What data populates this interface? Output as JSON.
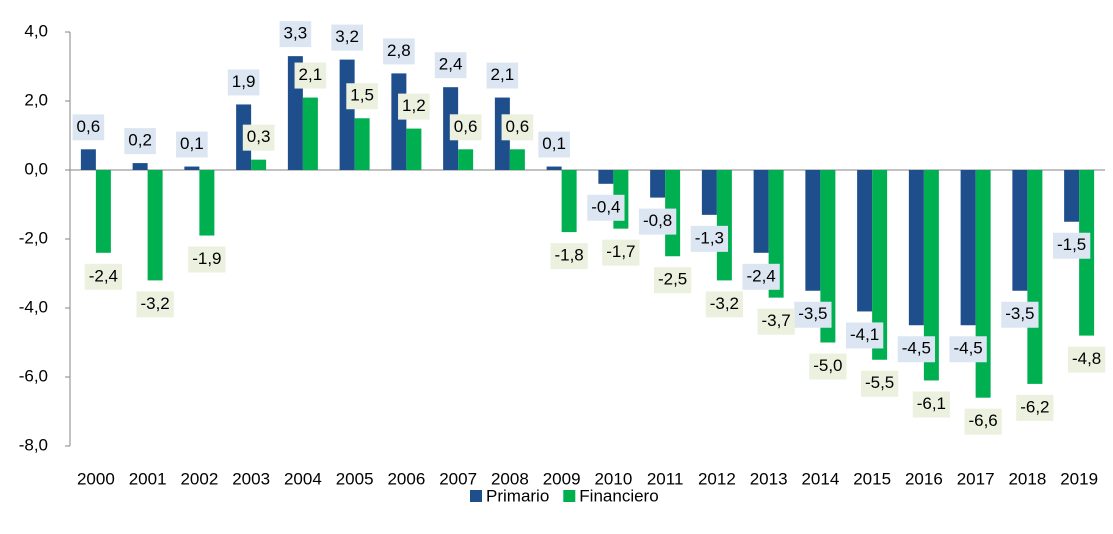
{
  "chart_data": {
    "type": "bar",
    "categories": [
      "2000",
      "2001",
      "2002",
      "2003",
      "2004",
      "2005",
      "2006",
      "2007",
      "2008",
      "2009",
      "2010",
      "2011",
      "2012",
      "2013",
      "2014",
      "2015",
      "2016",
      "2017",
      "2018",
      "2019"
    ],
    "series": [
      {
        "name": "Primario",
        "color": "#1f4e8c",
        "label_color": "#dce6f2",
        "values": [
          0.6,
          0.2,
          0.1,
          1.9,
          3.3,
          3.2,
          2.8,
          2.4,
          2.1,
          0.1,
          -0.4,
          -0.8,
          -1.3,
          -2.4,
          -3.5,
          -4.1,
          -4.5,
          -4.5,
          -3.5,
          -1.5
        ],
        "value_labels": [
          "0,6",
          "0,2",
          "0,1",
          "1,9",
          "3,3",
          "3,2",
          "2,8",
          "2,4",
          "2,1",
          "0,1",
          "-0,4",
          "-0,8",
          "-1,3",
          "-2,4",
          "-3,5",
          "-4,1",
          "-4,5",
          "-4,5",
          "-3,5",
          "-1,5"
        ]
      },
      {
        "name": "Financiero",
        "color": "#00b050",
        "label_color": "#ebf1de",
        "values": [
          -2.4,
          -3.2,
          -1.9,
          0.3,
          2.1,
          1.5,
          1.2,
          0.6,
          0.6,
          -1.8,
          -1.7,
          -2.5,
          -3.2,
          -3.7,
          -5.0,
          -5.5,
          -6.1,
          -6.6,
          -6.2,
          -4.8
        ],
        "value_labels": [
          "-2,4",
          "-3,2",
          "-1,9",
          "0,3",
          "2,1",
          "1,5",
          "1,2",
          "0,6",
          "0,6",
          "-1,8",
          "-1,7",
          "-2,5",
          "-3,2",
          "-3,7",
          "-5,0",
          "-5,5",
          "-6,1",
          "-6,6",
          "-6,2",
          "-4,8"
        ]
      }
    ],
    "ylim": [
      -8,
      4
    ],
    "yticks": [
      {
        "value": -8,
        "label": "-8,0"
      },
      {
        "value": -6,
        "label": "-6,0"
      },
      {
        "value": -4,
        "label": "-4,0"
      },
      {
        "value": -2,
        "label": "-2,0"
      },
      {
        "value": 0,
        "label": "0,0"
      },
      {
        "value": 2,
        "label": "2,0"
      },
      {
        "value": 4,
        "label": "4,0"
      }
    ],
    "legend": "bottom"
  }
}
